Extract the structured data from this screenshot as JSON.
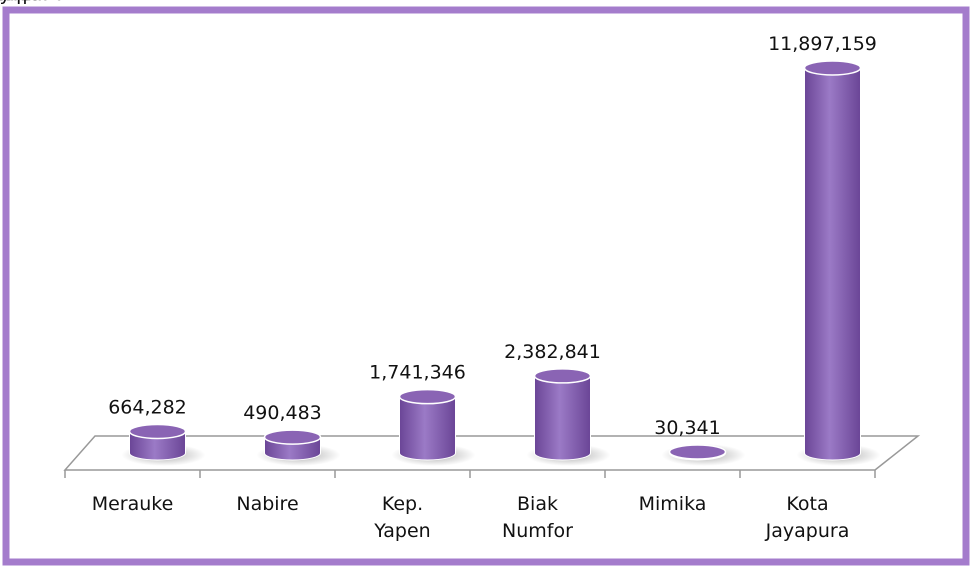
{
  "chart_data": {
    "type": "cylinder",
    "categories": [
      "Merauke",
      "Nabire",
      "Kep. Yapen",
      "Biak Numfor",
      "Mimika",
      "Kota Jayapura"
    ],
    "values": [
      664282,
      490483,
      1741346,
      2382841,
      30341,
      11897159
    ],
    "value_labels": [
      "664,282",
      "490,483",
      "1,741,346",
      "2,382,841",
      "30,341",
      "11,897,159"
    ],
    "color": "#8a64b4"
  }
}
